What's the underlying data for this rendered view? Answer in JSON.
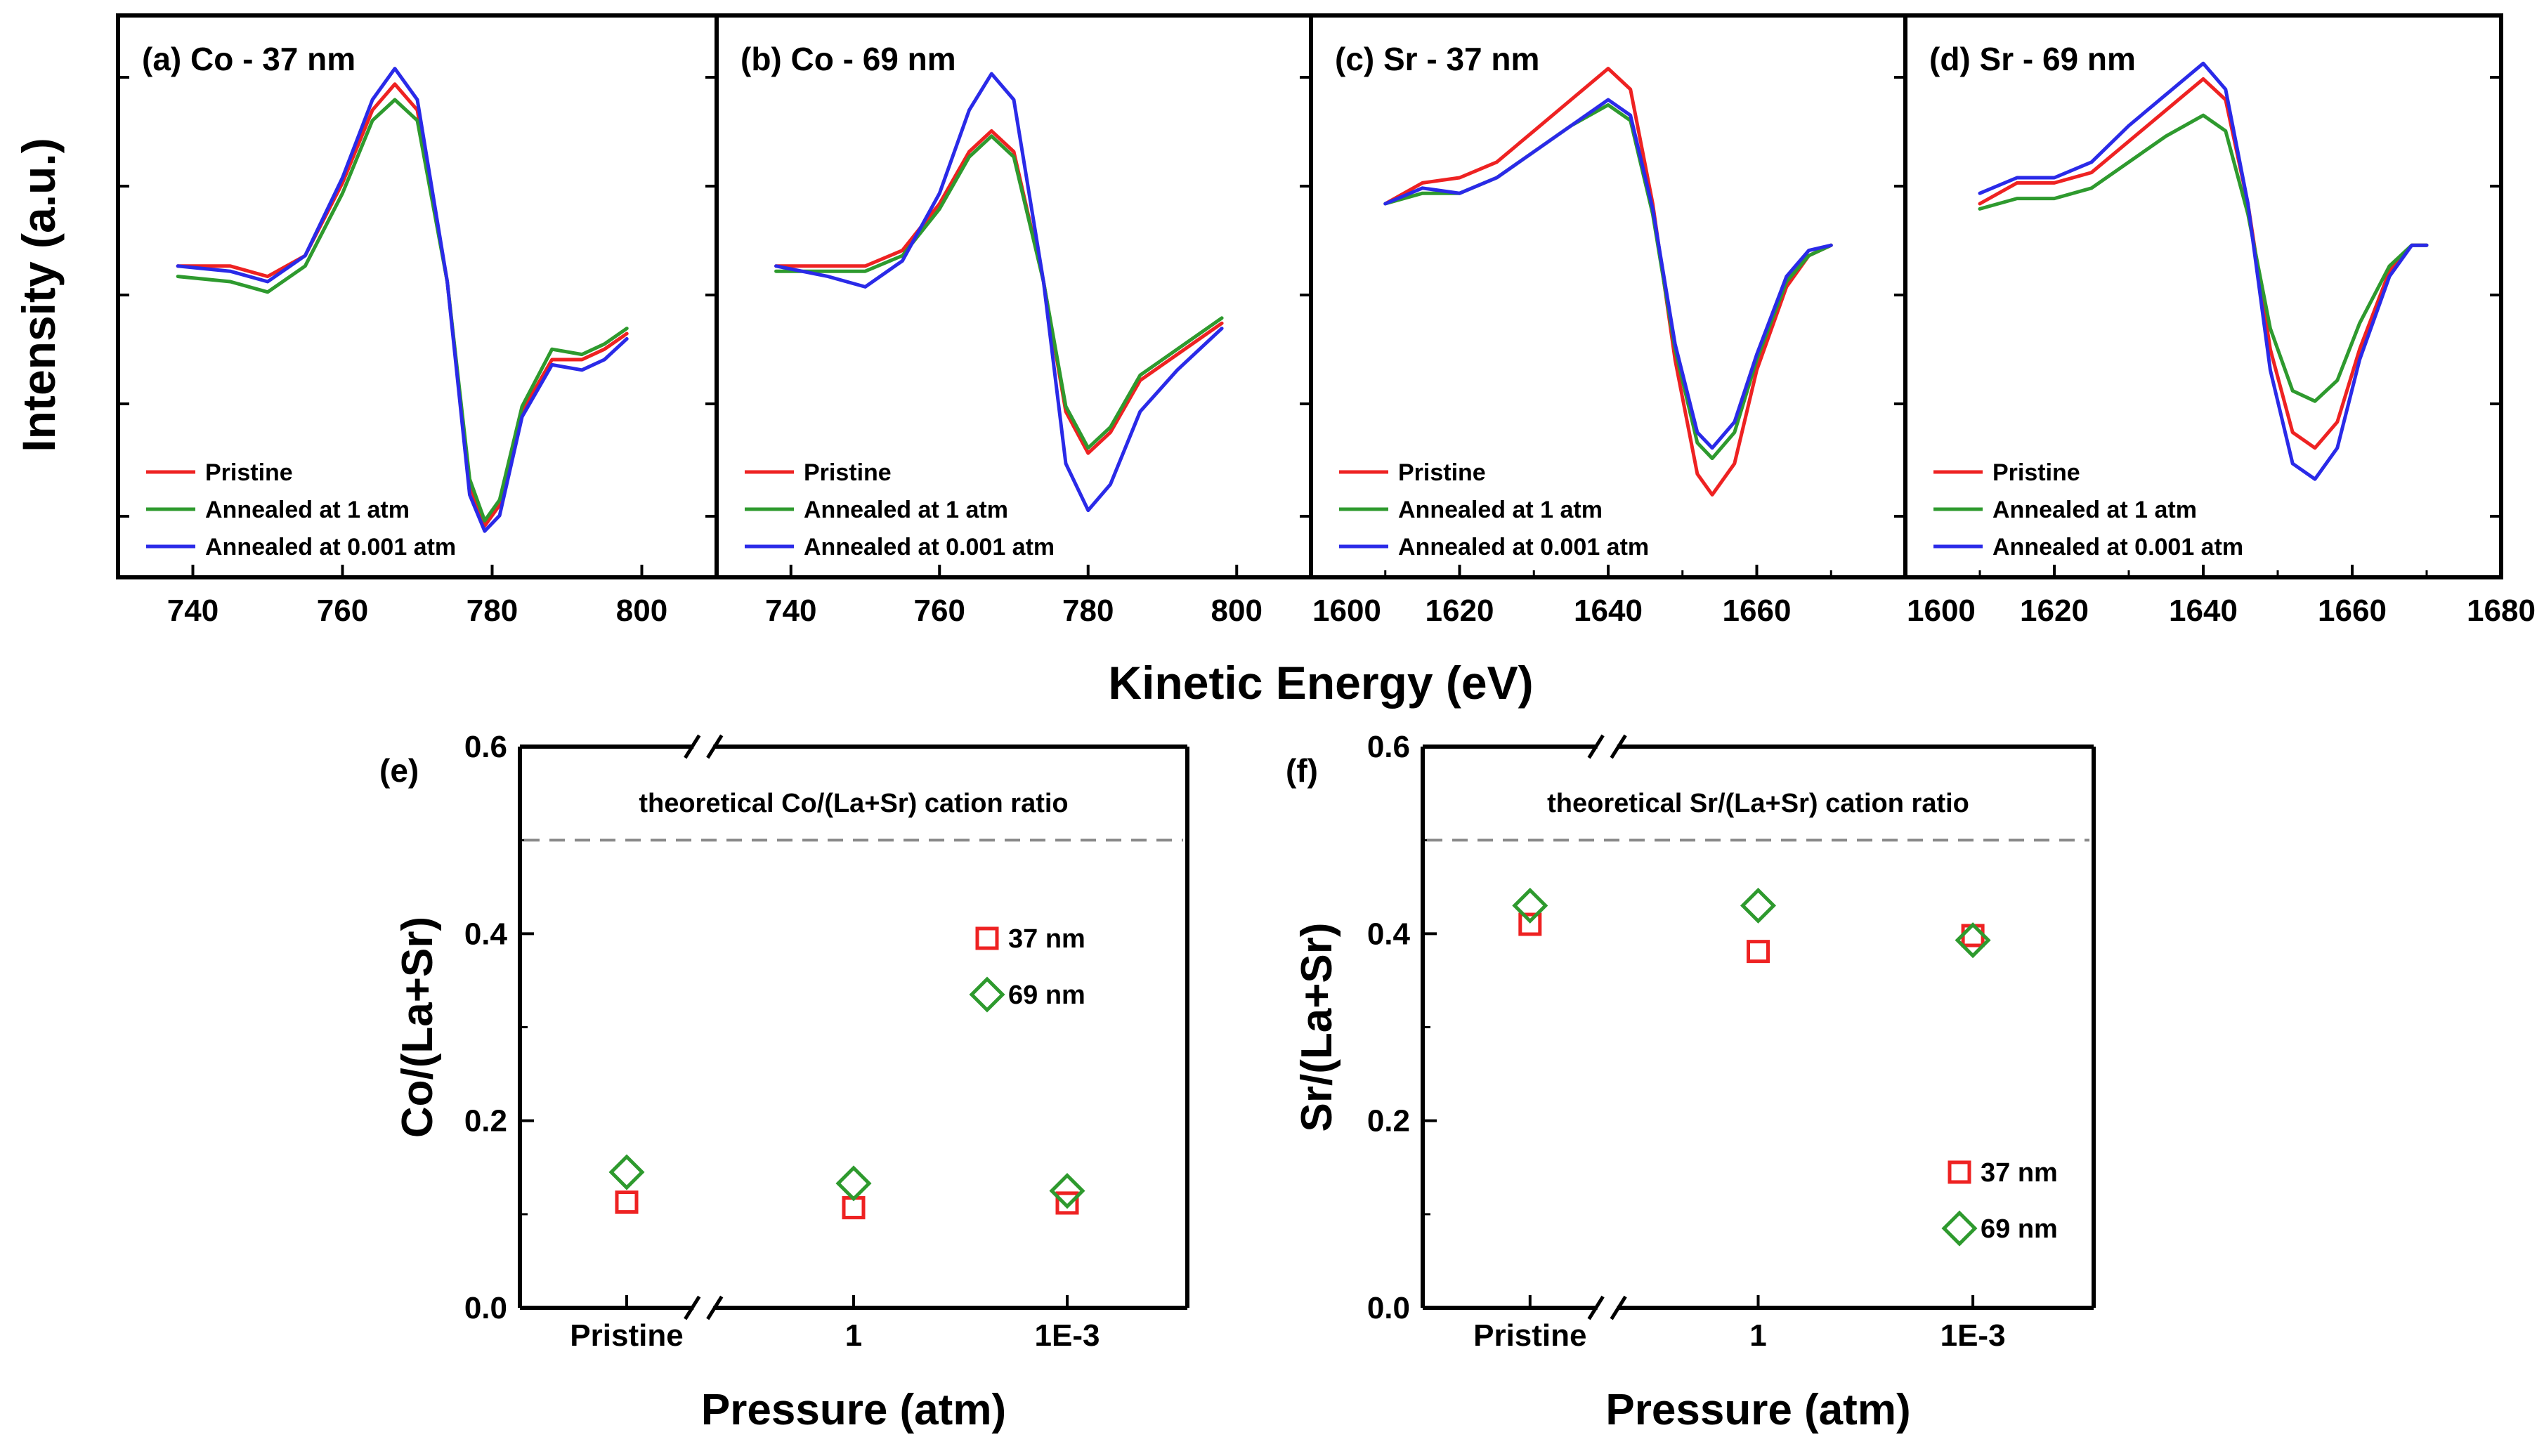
{
  "figure": {
    "shared_xlabel": "Kinetic Energy (eV)",
    "shared_ylabel": "Intensity (a.u.)"
  },
  "colors": {
    "pristine": "#ee2222",
    "annealed_1atm": "#2e9a2e",
    "annealed_0001atm": "#2a2ae8",
    "s37": "#ee2222",
    "s69": "#2e9a2e",
    "reference_line": "#888888"
  },
  "chart_data": [
    {
      "id": "a",
      "type": "line",
      "title": "(a) Co - 37 nm",
      "xlim": [
        730,
        810
      ],
      "xticks": [
        740,
        760,
        780,
        800
      ],
      "xticklabels": [
        "740",
        "760",
        "780",
        "800"
      ],
      "ylabel": "Intensity (a.u.)",
      "xlabel": "Kinetic Energy (eV)",
      "legend": [
        "Pristine",
        "Annealed at 1 atm",
        "Annealed at 0.001 atm"
      ],
      "series": [
        {
          "name": "Pristine",
          "x": [
            738,
            745,
            750,
            755,
            760,
            764,
            767,
            770,
            774,
            777,
            779,
            781,
            784,
            788,
            792,
            795,
            798
          ],
          "y": [
            0.58,
            0.58,
            0.56,
            0.6,
            0.74,
            0.88,
            0.93,
            0.88,
            0.55,
            0.16,
            0.08,
            0.12,
            0.3,
            0.4,
            0.4,
            0.42,
            0.45
          ]
        },
        {
          "name": "Annealed at 1 atm",
          "x": [
            738,
            745,
            750,
            755,
            760,
            764,
            767,
            770,
            774,
            777,
            779,
            781,
            784,
            788,
            792,
            795,
            798
          ],
          "y": [
            0.56,
            0.55,
            0.53,
            0.58,
            0.72,
            0.86,
            0.9,
            0.86,
            0.55,
            0.17,
            0.09,
            0.13,
            0.31,
            0.42,
            0.41,
            0.43,
            0.46
          ]
        },
        {
          "name": "Annealed at 0.001 atm",
          "x": [
            738,
            745,
            750,
            755,
            760,
            764,
            767,
            770,
            774,
            777,
            779,
            781,
            784,
            788,
            792,
            795,
            798
          ],
          "y": [
            0.58,
            0.57,
            0.55,
            0.6,
            0.75,
            0.9,
            0.96,
            0.9,
            0.55,
            0.14,
            0.07,
            0.1,
            0.29,
            0.39,
            0.38,
            0.4,
            0.44
          ]
        }
      ]
    },
    {
      "id": "b",
      "type": "line",
      "title": "(b) Co - 69 nm",
      "xlim": [
        730,
        810
      ],
      "xticks": [
        740,
        760,
        780,
        800
      ],
      "xticklabels": [
        "740",
        "760",
        "780",
        "800"
      ],
      "legend": [
        "Pristine",
        "Annealed at 1 atm",
        "Annealed at 0.001 atm"
      ],
      "series": [
        {
          "name": "Pristine",
          "x": [
            738,
            745,
            750,
            755,
            760,
            764,
            767,
            770,
            774,
            777,
            780,
            783,
            787,
            792,
            798
          ],
          "y": [
            0.58,
            0.58,
            0.58,
            0.61,
            0.7,
            0.8,
            0.84,
            0.8,
            0.55,
            0.3,
            0.22,
            0.26,
            0.36,
            0.41,
            0.47
          ]
        },
        {
          "name": "Annealed at 1 atm",
          "x": [
            738,
            745,
            750,
            755,
            760,
            764,
            767,
            770,
            774,
            777,
            780,
            783,
            787,
            792,
            798
          ],
          "y": [
            0.57,
            0.57,
            0.57,
            0.6,
            0.69,
            0.79,
            0.83,
            0.79,
            0.55,
            0.31,
            0.23,
            0.27,
            0.37,
            0.42,
            0.48
          ]
        },
        {
          "name": "Annealed at 0.001 atm",
          "x": [
            738,
            745,
            750,
            755,
            760,
            764,
            767,
            770,
            774,
            777,
            780,
            783,
            787,
            792,
            798
          ],
          "y": [
            0.58,
            0.56,
            0.54,
            0.59,
            0.72,
            0.88,
            0.95,
            0.9,
            0.55,
            0.2,
            0.11,
            0.16,
            0.3,
            0.38,
            0.46
          ]
        }
      ]
    },
    {
      "id": "c",
      "type": "line",
      "title": "(c) Sr - 37 nm",
      "xlim": [
        1600,
        1680
      ],
      "xticks": [
        1600,
        1620,
        1640,
        1660
      ],
      "xticklabels": [
        "1600",
        "1620",
        "1640",
        "1660"
      ],
      "legend": [
        "Pristine",
        "Annealed at 1 atm",
        "Annealed at 0.001 atm"
      ],
      "series": [
        {
          "name": "Pristine",
          "x": [
            1610,
            1615,
            1620,
            1625,
            1630,
            1635,
            1640,
            1643,
            1646,
            1649,
            1652,
            1654,
            1657,
            1660,
            1664,
            1667,
            1670
          ],
          "y": [
            0.7,
            0.74,
            0.75,
            0.78,
            0.84,
            0.9,
            0.96,
            0.92,
            0.7,
            0.4,
            0.18,
            0.14,
            0.2,
            0.38,
            0.54,
            0.6,
            0.62
          ]
        },
        {
          "name": "Annealed at 1 atm",
          "x": [
            1610,
            1615,
            1620,
            1625,
            1630,
            1635,
            1640,
            1643,
            1646,
            1649,
            1652,
            1654,
            1657,
            1660,
            1664,
            1667,
            1670
          ],
          "y": [
            0.7,
            0.72,
            0.72,
            0.75,
            0.8,
            0.85,
            0.89,
            0.86,
            0.68,
            0.42,
            0.24,
            0.21,
            0.26,
            0.4,
            0.55,
            0.6,
            0.62
          ]
        },
        {
          "name": "Annealed at 0.001 atm",
          "x": [
            1610,
            1615,
            1620,
            1625,
            1630,
            1635,
            1640,
            1643,
            1646,
            1649,
            1652,
            1654,
            1657,
            1660,
            1664,
            1667,
            1670
          ],
          "y": [
            0.7,
            0.73,
            0.72,
            0.75,
            0.8,
            0.85,
            0.9,
            0.87,
            0.69,
            0.43,
            0.26,
            0.23,
            0.28,
            0.41,
            0.56,
            0.61,
            0.62
          ]
        }
      ]
    },
    {
      "id": "d",
      "type": "line",
      "title": "(d) Sr - 69 nm",
      "xlim": [
        1600,
        1680
      ],
      "xticks": [
        1600,
        1620,
        1640,
        1660,
        1680
      ],
      "xticklabels": [
        "1600",
        "1620",
        "1640",
        "1660",
        "1680"
      ],
      "legend": [
        "Pristine",
        "Annealed at 1 atm",
        "Annealed at 0.001 atm"
      ],
      "series": [
        {
          "name": "Pristine",
          "x": [
            1610,
            1615,
            1620,
            1625,
            1630,
            1635,
            1640,
            1643,
            1646,
            1649,
            1652,
            1655,
            1658,
            1661,
            1665,
            1668,
            1670
          ],
          "y": [
            0.7,
            0.74,
            0.74,
            0.76,
            0.82,
            0.88,
            0.94,
            0.9,
            0.7,
            0.42,
            0.26,
            0.23,
            0.28,
            0.42,
            0.57,
            0.62,
            0.62
          ]
        },
        {
          "name": "Annealed at 1 atm",
          "x": [
            1610,
            1615,
            1620,
            1625,
            1630,
            1635,
            1640,
            1643,
            1646,
            1649,
            1652,
            1655,
            1658,
            1661,
            1665,
            1668,
            1670
          ],
          "y": [
            0.69,
            0.71,
            0.71,
            0.73,
            0.78,
            0.83,
            0.87,
            0.84,
            0.68,
            0.46,
            0.34,
            0.32,
            0.36,
            0.47,
            0.58,
            0.62,
            0.62
          ]
        },
        {
          "name": "Annealed at 0.001 atm",
          "x": [
            1610,
            1615,
            1620,
            1625,
            1630,
            1635,
            1640,
            1643,
            1646,
            1649,
            1652,
            1655,
            1658,
            1661,
            1665,
            1668,
            1670
          ],
          "y": [
            0.72,
            0.75,
            0.75,
            0.78,
            0.85,
            0.91,
            0.97,
            0.92,
            0.7,
            0.38,
            0.2,
            0.17,
            0.23,
            0.4,
            0.56,
            0.62,
            0.62
          ]
        }
      ]
    },
    {
      "id": "e",
      "type": "scatter",
      "label": "(e)",
      "categories": [
        "Pristine",
        "1",
        "1E-3"
      ],
      "xlabel": "Pressure (atm)",
      "ylabel": "Co/(La+Sr)",
      "ylim": [
        0.0,
        0.6
      ],
      "yticks": [
        "0.0",
        "0.2",
        "0.4",
        "0.6"
      ],
      "reference": {
        "value": 0.5,
        "label": "theoretical Co/(La+Sr) cation ratio"
      },
      "legend": [
        "37 nm",
        "69 nm"
      ],
      "series": [
        {
          "name": "37 nm",
          "values": [
            0.113,
            0.107,
            0.112
          ]
        },
        {
          "name": "69 nm",
          "values": [
            0.145,
            0.133,
            0.125
          ]
        }
      ]
    },
    {
      "id": "f",
      "type": "scatter",
      "label": "(f)",
      "categories": [
        "Pristine",
        "1",
        "1E-3"
      ],
      "xlabel": "Pressure (atm)",
      "ylabel": "Sr/(La+Sr)",
      "ylim": [
        0.0,
        0.6
      ],
      "yticks": [
        "0.0",
        "0.2",
        "0.4",
        "0.6"
      ],
      "reference": {
        "value": 0.5,
        "label": "theoretical Sr/(La+Sr) cation ratio"
      },
      "legend": [
        "37 nm",
        "69 nm"
      ],
      "series": [
        {
          "name": "37 nm",
          "values": [
            0.41,
            0.381,
            0.398
          ]
        },
        {
          "name": "69 nm",
          "values": [
            0.43,
            0.43,
            0.393
          ]
        }
      ]
    }
  ]
}
